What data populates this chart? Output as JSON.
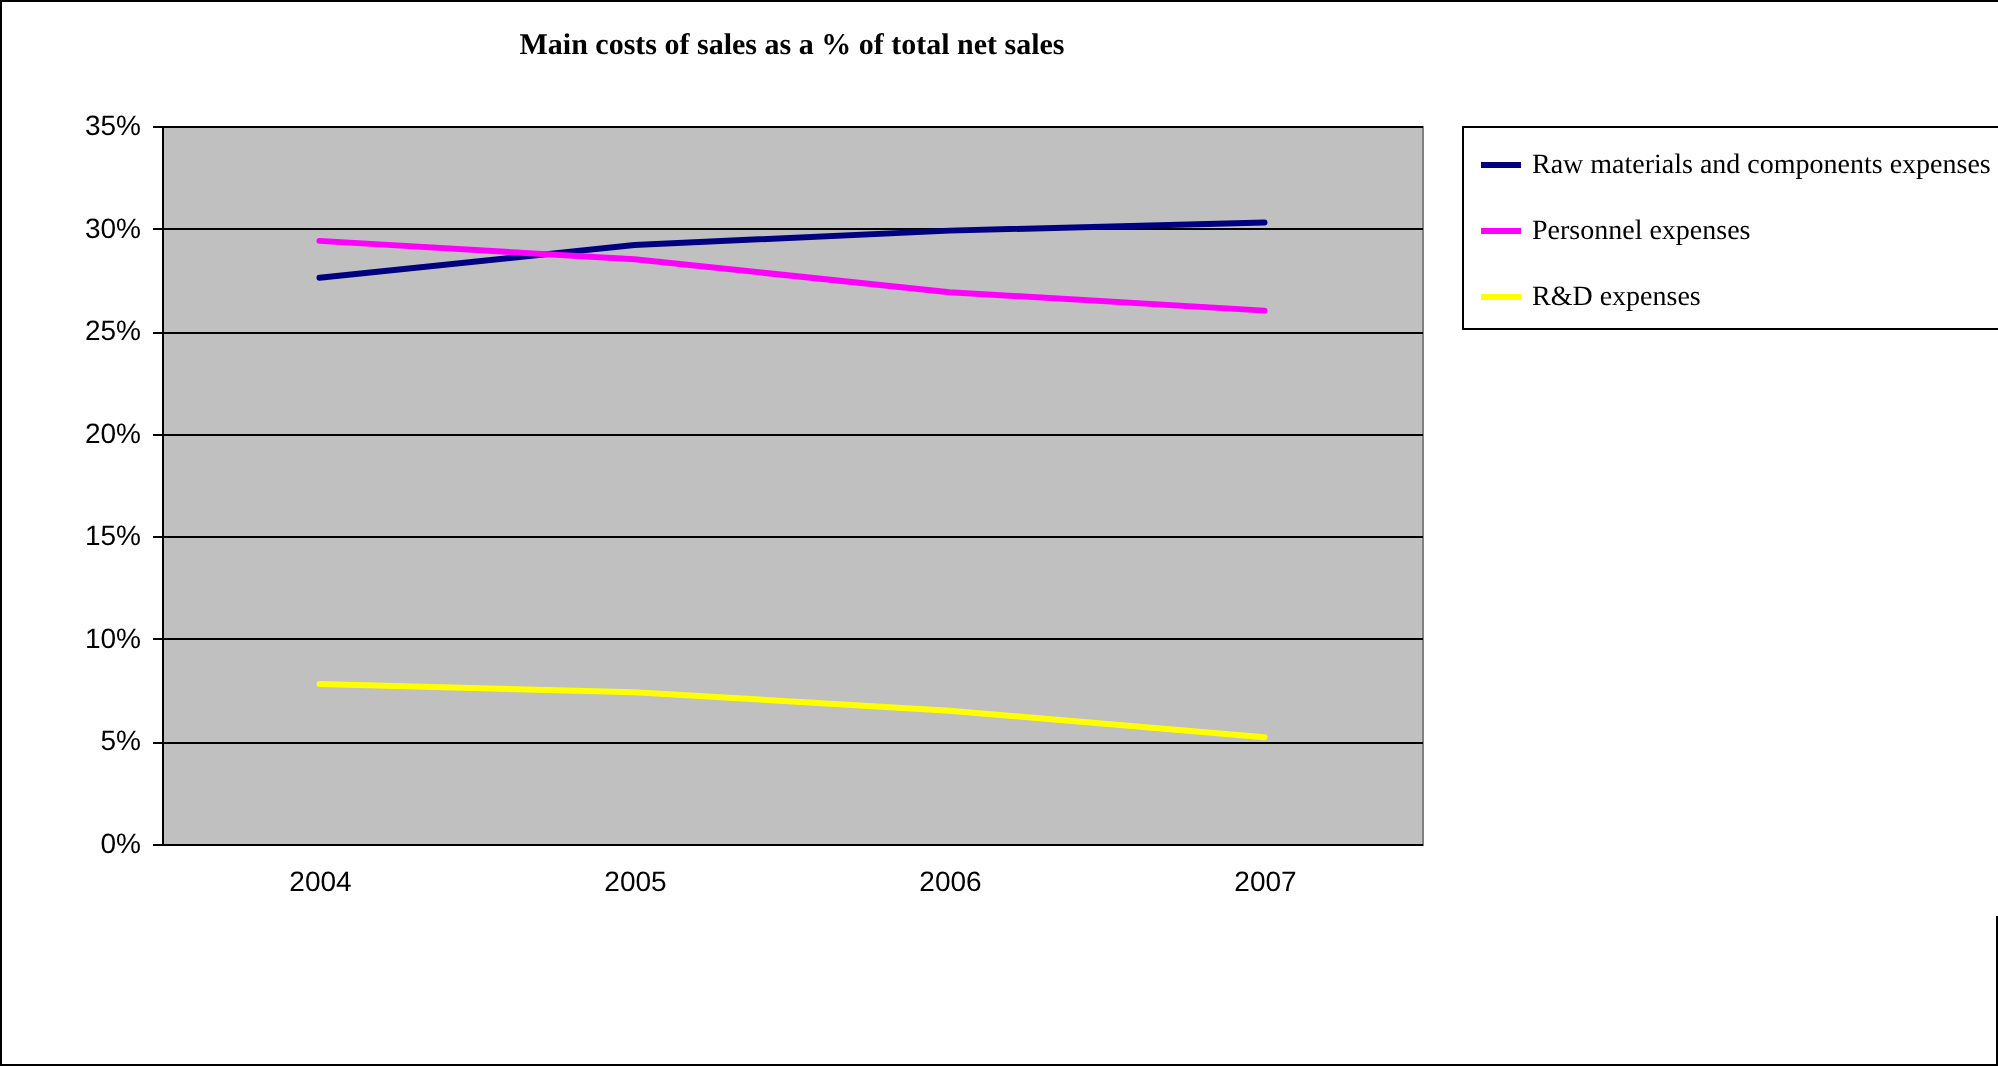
{
  "chart_data": {
    "type": "line",
    "title": "Main costs of sales as a % of total net sales",
    "categories": [
      "2004",
      "2005",
      "2006",
      "2007"
    ],
    "series": [
      {
        "name": "Raw materials and components expenses",
        "color": "#000080",
        "values": [
          27.6,
          29.2,
          29.9,
          30.3
        ]
      },
      {
        "name": "Personnel expenses",
        "color": "#ff00ff",
        "values": [
          29.4,
          28.5,
          26.9,
          26.0
        ]
      },
      {
        "name": "R&D expenses",
        "color": "#ffff00",
        "values": [
          7.8,
          7.4,
          6.5,
          5.2
        ]
      }
    ],
    "ylim": [
      0,
      35
    ],
    "yticks": [
      {
        "value": 0,
        "label": "0%"
      },
      {
        "value": 5,
        "label": "5%"
      },
      {
        "value": 10,
        "label": "10%"
      },
      {
        "value": 15,
        "label": "15%"
      },
      {
        "value": 20,
        "label": "20%"
      },
      {
        "value": 25,
        "label": "25%"
      },
      {
        "value": 30,
        "label": "30%"
      },
      {
        "value": 35,
        "label": "35%"
      }
    ],
    "grid": "y",
    "legend": "right",
    "marker": "none",
    "line_style": "solid"
  }
}
